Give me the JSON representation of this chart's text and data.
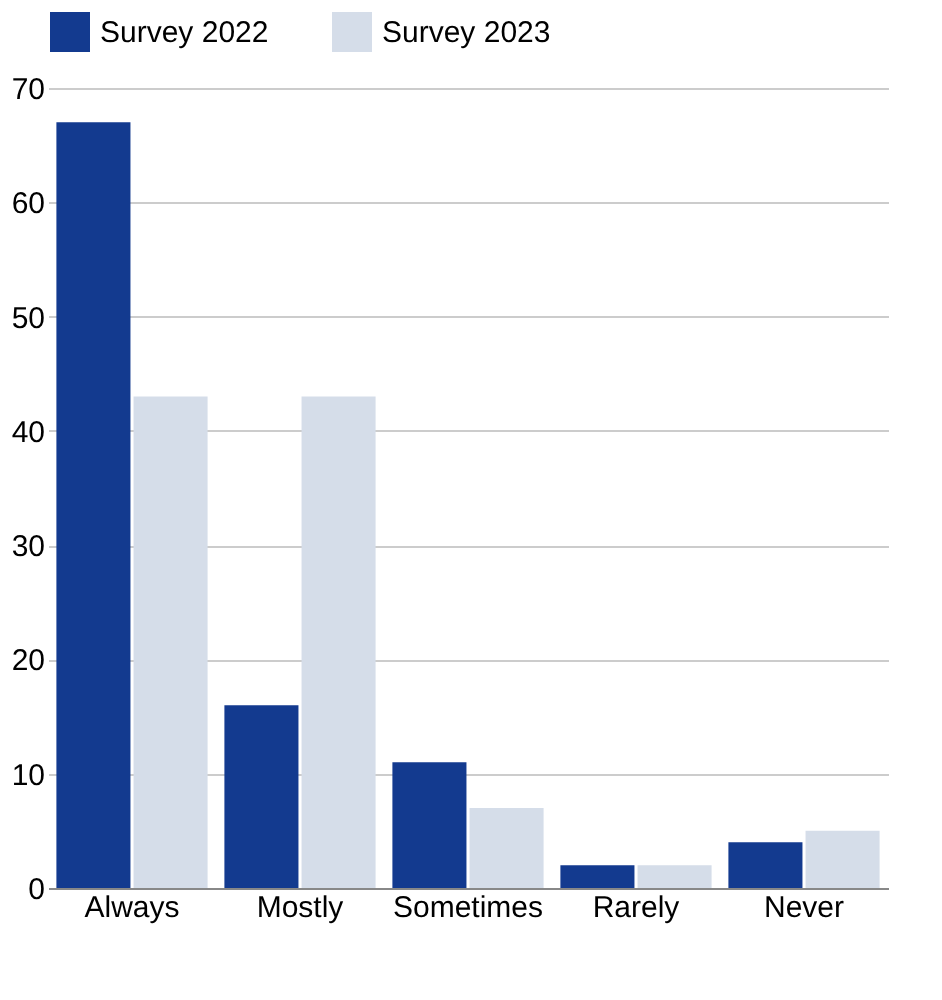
{
  "chart_data": {
    "type": "bar",
    "categories": [
      "Always",
      "Mostly",
      "Sometimes",
      "Rarely",
      "Never"
    ],
    "series": [
      {
        "name": "Survey 2022",
        "color": "#133a8f",
        "values": [
          67,
          16,
          11,
          2,
          4
        ]
      },
      {
        "name": "Survey 2023",
        "color": "#d5dde9",
        "values": [
          43,
          43,
          7,
          2,
          5
        ]
      }
    ],
    "ylim": [
      0,
      70
    ],
    "yticks": [
      0,
      10,
      20,
      30,
      40,
      50,
      60,
      70
    ],
    "grid": "y",
    "legend": "top"
  }
}
